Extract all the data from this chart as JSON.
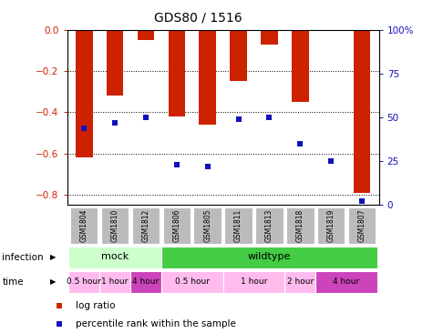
{
  "title": "GDS80 / 1516",
  "samples": [
    "GSM1804",
    "GSM1810",
    "GSM1812",
    "GSM1806",
    "GSM1805",
    "GSM1811",
    "GSM1813",
    "GSM1818",
    "GSM1819",
    "GSM1807"
  ],
  "log_ratios": [
    -0.62,
    -0.32,
    -0.05,
    -0.42,
    -0.46,
    -0.25,
    -0.07,
    -0.35,
    -0.005,
    -0.79
  ],
  "percentile_ranks": [
    44,
    47,
    50,
    23,
    22,
    49,
    50,
    35,
    25,
    2
  ],
  "ylim_left": [
    -0.85,
    0.0
  ],
  "ylim_right": [
    0,
    100
  ],
  "yticks_left": [
    0.0,
    -0.2,
    -0.4,
    -0.6,
    -0.8
  ],
  "yticks_right": [
    0,
    25,
    50,
    75,
    100
  ],
  "bar_color": "#CC2200",
  "dot_color": "#1111BB",
  "infection_groups": [
    {
      "label": "mock",
      "start": 0,
      "end": 3,
      "color": "#CCFFCC"
    },
    {
      "label": "wildtype",
      "start": 3,
      "end": 10,
      "color": "#44CC44"
    }
  ],
  "time_boundaries": [
    {
      "label": "0.5 hour",
      "s": 0,
      "e": 1,
      "color": "#FFBBEE"
    },
    {
      "label": "1 hour",
      "s": 1,
      "e": 2,
      "color": "#FFBBEE"
    },
    {
      "label": "4 hour",
      "s": 2,
      "e": 3,
      "color": "#CC44BB"
    },
    {
      "label": "0.5 hour",
      "s": 3,
      "e": 5,
      "color": "#FFBBEE"
    },
    {
      "label": "1 hour",
      "s": 5,
      "e": 7,
      "color": "#FFBBEE"
    },
    {
      "label": "2 hour",
      "s": 7,
      "e": 8,
      "color": "#FFBBEE"
    },
    {
      "label": "4 hour",
      "s": 8,
      "e": 10,
      "color": "#CC44BB"
    }
  ],
  "legend_items": [
    {
      "label": "log ratio",
      "color": "#CC2200"
    },
    {
      "label": "percentile rank within the sample",
      "color": "#1111BB"
    }
  ],
  "sample_bg_color": "#BBBBBB",
  "left_label_color": "#CC2200",
  "right_label_color": "#1111BB",
  "background_color": "#FFFFFF"
}
